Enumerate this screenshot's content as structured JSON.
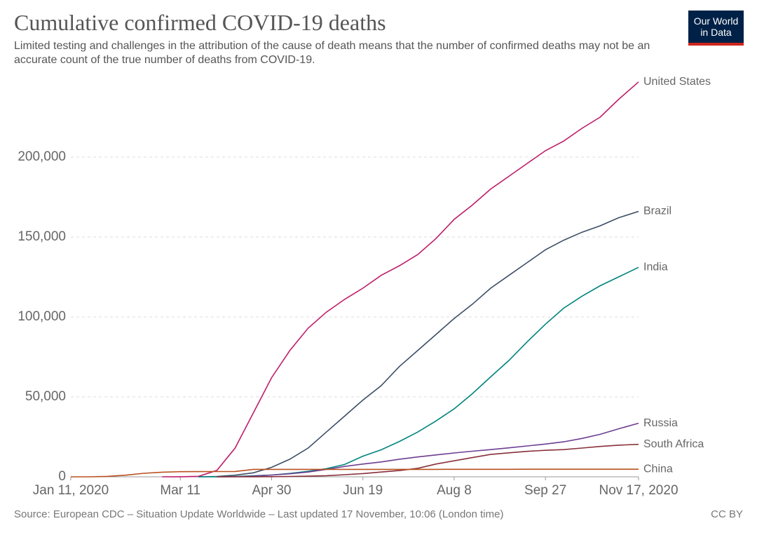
{
  "chart_data": {
    "type": "line",
    "title": "Cumulative confirmed COVID-19 deaths",
    "subtitle": "Limited testing and challenges in the attribution of the cause of death means that the number of confirmed deaths may not be an accurate count of the true number of deaths from COVID-19.",
    "logo": [
      "Our World",
      "in Data"
    ],
    "source": "Source: European CDC – Situation Update Worldwide – Last updated 17 November, 10:06 (London time)",
    "license": "CC BY",
    "x": [
      "2020-01-11",
      "2020-01-21",
      "2020-01-31",
      "2020-02-10",
      "2020-02-20",
      "2020-03-01",
      "2020-03-11",
      "2020-03-21",
      "2020-03-31",
      "2020-04-10",
      "2020-04-20",
      "2020-04-30",
      "2020-05-10",
      "2020-05-20",
      "2020-05-30",
      "2020-06-09",
      "2020-06-19",
      "2020-06-29",
      "2020-07-09",
      "2020-07-19",
      "2020-07-29",
      "2020-08-08",
      "2020-08-18",
      "2020-08-28",
      "2020-09-07",
      "2020-09-17",
      "2020-09-27",
      "2020-10-07",
      "2020-10-17",
      "2020-10-27",
      "2020-11-06",
      "2020-11-17"
    ],
    "xlim": [
      "2020-01-11",
      "2020-11-17"
    ],
    "xticks": [
      {
        "value": "2020-01-11",
        "label": "Jan 11, 2020"
      },
      {
        "value": "2020-03-11",
        "label": "Mar 11"
      },
      {
        "value": "2020-04-30",
        "label": "Apr 30"
      },
      {
        "value": "2020-06-19",
        "label": "Jun 19"
      },
      {
        "value": "2020-08-08",
        "label": "Aug 8"
      },
      {
        "value": "2020-09-27",
        "label": "Sep 27"
      },
      {
        "value": "2020-11-17",
        "label": "Nov 17, 2020"
      }
    ],
    "ylim": [
      0,
      250000
    ],
    "yticks": [
      0,
      {
        "value": 50000,
        "label": "50,000"
      },
      {
        "value": 100000,
        "label": "100,000"
      },
      {
        "value": 150000,
        "label": "150,000"
      },
      {
        "value": 200000,
        "label": "200,000"
      }
    ],
    "grid": true,
    "series": [
      {
        "name": "United States",
        "color": "#be1d6a",
        "values": [
          null,
          null,
          null,
          null,
          null,
          1,
          30,
          300,
          4000,
          18000,
          40000,
          62000,
          79000,
          93000,
          103000,
          111000,
          118000,
          126000,
          132000,
          139000,
          149000,
          161000,
          170000,
          180000,
          188000,
          196000,
          204000,
          210000,
          218000,
          225000,
          236000,
          247000
        ]
      },
      {
        "name": "Brazil",
        "color": "#3c4e66",
        "values": [
          null,
          null,
          null,
          null,
          null,
          null,
          null,
          10,
          200,
          1000,
          2500,
          5900,
          11000,
          18000,
          28000,
          38000,
          48000,
          57000,
          69000,
          79000,
          89000,
          99000,
          108000,
          118000,
          126000,
          134000,
          142000,
          148000,
          153000,
          157000,
          162000,
          166000
        ]
      },
      {
        "name": "India",
        "color": "#00847e",
        "values": [
          null,
          null,
          null,
          null,
          null,
          null,
          null,
          4,
          35,
          200,
          600,
          1100,
          2100,
          3400,
          5100,
          7700,
          12900,
          16900,
          22100,
          28000,
          34900,
          42500,
          52000,
          62500,
          72800,
          84400,
          95500,
          105500,
          113000,
          119500,
          125000,
          131000
        ]
      },
      {
        "name": "Russia",
        "color": "#6d3e91",
        "values": [
          null,
          null,
          null,
          null,
          null,
          null,
          null,
          null,
          17,
          90,
          400,
          1100,
          1900,
          3000,
          4600,
          6500,
          8000,
          9300,
          11000,
          12400,
          13700,
          14900,
          16000,
          17000,
          18100,
          19300,
          20500,
          21900,
          24000,
          26600,
          30000,
          33500
        ]
      },
      {
        "name": "South Africa",
        "color": "#883039",
        "values": [
          null,
          null,
          null,
          null,
          null,
          null,
          null,
          null,
          5,
          20,
          60,
          100,
          200,
          400,
          700,
          1300,
          2000,
          3000,
          3900,
          5300,
          8000,
          10000,
          12000,
          14000,
          15000,
          15900,
          16600,
          17000,
          18000,
          19000,
          19800,
          20300
        ]
      },
      {
        "name": "China",
        "color": "#b9501e",
        "values": [
          1,
          6,
          260,
          1000,
          2200,
          2900,
          3200,
          3260,
          3310,
          3340,
          4640,
          4637,
          4637,
          4638,
          4638,
          4641,
          4643,
          4648,
          4650,
          4657,
          4667,
          4681,
          4699,
          4710,
          4712,
          4730,
          4738,
          4739,
          4739,
          4739,
          4741,
          4742
        ]
      }
    ]
  }
}
